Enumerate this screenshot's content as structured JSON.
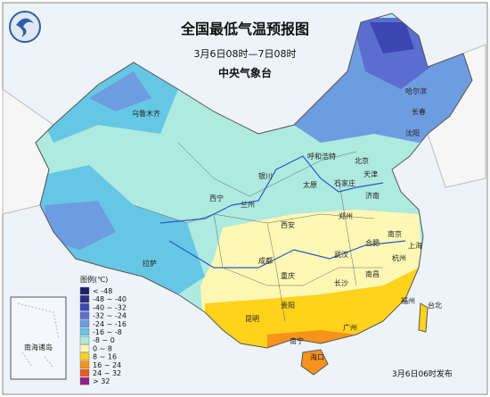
{
  "header": {
    "title": "全国最低气温预报图",
    "period": "3月6日08时—7日08时",
    "issuer": "中央气象台"
  },
  "legend": {
    "title": "图例(℃)",
    "items": [
      {
        "label": "< -48",
        "color": "#1c2066"
      },
      {
        "label": "-48 ~ -40",
        "color": "#2b2f8e"
      },
      {
        "label": "-40 ~ -32",
        "color": "#3c46b2"
      },
      {
        "label": "-32 ~ -24",
        "color": "#5a6ecf"
      },
      {
        "label": "-24 ~ -16",
        "color": "#6e9ce0"
      },
      {
        "label": "-16 ~ -8",
        "color": "#66c7e4"
      },
      {
        "label": "-8 ~ 0",
        "color": "#aeeadf"
      },
      {
        "label": "0 ~ 8",
        "color": "#fff8b4"
      },
      {
        "label": "8 ~ 16",
        "color": "#ffd21c"
      },
      {
        "label": "16 ~ 24",
        "color": "#f6931c"
      },
      {
        "label": "24 ~ 32",
        "color": "#e5601a"
      },
      {
        "label": "> 32",
        "color": "#8e1f86"
      }
    ]
  },
  "inset": {
    "label": "南海诸岛"
  },
  "cities": [
    "乌鲁木齐",
    "哈尔滨",
    "长春",
    "沈阳",
    "呼和浩特",
    "北京",
    "天津",
    "石家庄",
    "太原",
    "济南",
    "银川",
    "兰州",
    "西宁",
    "郑州",
    "西安",
    "合肥",
    "南京",
    "上海",
    "武汉",
    "杭州",
    "成都",
    "重庆",
    "长沙",
    "南昌",
    "福州",
    "贵阳",
    "昆明",
    "南宁",
    "广州",
    "海口",
    "台北",
    "拉萨"
  ],
  "footer": {
    "published": "3月6日06时发布"
  }
}
